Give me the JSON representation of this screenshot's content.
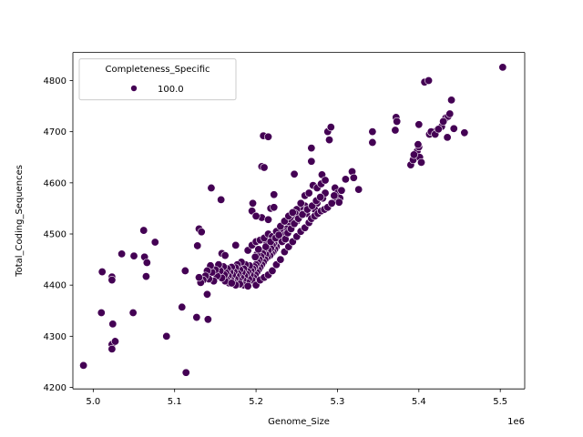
{
  "chart_data": {
    "type": "scatter",
    "xlabel": "Genome_Size",
    "ylabel": "Total_Coding_Sequences",
    "x_scale_label": "1e6",
    "xlim": [
      4.975,
      5.53
    ],
    "ylim": [
      4197,
      4855
    ],
    "x_ticks": [
      5.0,
      5.1,
      5.2,
      5.3,
      5.4,
      5.5
    ],
    "x_tick_labels": [
      "5.0",
      "5.1",
      "5.2",
      "5.3",
      "5.4",
      "5.5"
    ],
    "y_ticks": [
      4200,
      4300,
      4400,
      4500,
      4600,
      4700,
      4800
    ],
    "y_tick_labels": [
      "4200",
      "4300",
      "4400",
      "4500",
      "4600",
      "4700",
      "4800"
    ],
    "grid": false,
    "legend": {
      "title": "Completeness_Specific",
      "entries": [
        "100.0"
      ],
      "placement": "upper-left"
    },
    "marker_color": "#440154",
    "marker_edge_color": "#ffffff",
    "series": [
      {
        "name": "100.0",
        "points": [
          [
            4.988,
            4243
          ],
          [
            5.011,
            4426
          ],
          [
            5.01,
            4346
          ],
          [
            5.023,
            4416
          ],
          [
            5.023,
            4410
          ],
          [
            5.024,
            4324
          ],
          [
            5.023,
            4284
          ],
          [
            5.023,
            4275
          ],
          [
            5.027,
            4290
          ],
          [
            5.035,
            4461
          ],
          [
            5.049,
            4346
          ],
          [
            5.05,
            4457
          ],
          [
            5.062,
            4507
          ],
          [
            5.063,
            4455
          ],
          [
            5.065,
            4417
          ],
          [
            5.066,
            4444
          ],
          [
            5.076,
            4484
          ],
          [
            5.09,
            4300
          ],
          [
            5.109,
            4357
          ],
          [
            5.113,
            4428
          ],
          [
            5.114,
            4229
          ],
          [
            5.127,
            4337
          ],
          [
            5.128,
            4477
          ],
          [
            5.13,
            4510
          ],
          [
            5.133,
            4504
          ],
          [
            5.14,
            4382
          ],
          [
            5.141,
            4333
          ],
          [
            5.145,
            4590
          ],
          [
            5.157,
            4567
          ],
          [
            5.209,
            4692
          ],
          [
            5.215,
            4690
          ],
          [
            5.196,
            4560
          ],
          [
            5.207,
            4632
          ],
          [
            5.21,
            4630
          ],
          [
            5.222,
            4577
          ],
          [
            5.247,
            4617
          ],
          [
            5.268,
            4668
          ],
          [
            5.268,
            4642
          ],
          [
            5.281,
            4616
          ],
          [
            5.288,
            4700
          ],
          [
            5.292,
            4709
          ],
          [
            5.29,
            4684
          ],
          [
            5.31,
            4607
          ],
          [
            5.318,
            4622
          ],
          [
            5.32,
            4610
          ],
          [
            5.326,
            4587
          ],
          [
            5.343,
            4700
          ],
          [
            5.343,
            4679
          ],
          [
            5.372,
            4728
          ],
          [
            5.373,
            4720
          ],
          [
            5.371,
            4703
          ],
          [
            5.4,
            4714
          ],
          [
            5.407,
            4797
          ],
          [
            5.412,
            4800
          ],
          [
            5.413,
            4695
          ],
          [
            5.419,
            4700
          ],
          [
            5.433,
            4727
          ],
          [
            5.436,
            4730
          ],
          [
            5.438,
            4735
          ],
          [
            5.44,
            4762
          ],
          [
            5.443,
            4706
          ],
          [
            5.435,
            4689
          ],
          [
            5.456,
            4698
          ],
          [
            5.503,
            4826
          ],
          [
            5.39,
            4635
          ],
          [
            5.393,
            4645
          ],
          [
            5.396,
            4658
          ],
          [
            5.398,
            4662
          ],
          [
            5.4,
            4670
          ],
          [
            5.401,
            4650
          ],
          [
            5.403,
            4640
          ],
          [
            5.399,
            4675
          ],
          [
            5.394,
            4655
          ],
          [
            5.415,
            4700
          ],
          [
            5.42,
            4695
          ],
          [
            5.428,
            4710
          ],
          [
            5.43,
            4720
          ],
          [
            5.424,
            4705
          ],
          [
            5.297,
            4590
          ],
          [
            5.3,
            4580
          ],
          [
            5.303,
            4570
          ],
          [
            5.305,
            4585
          ],
          [
            5.299,
            4565
          ],
          [
            5.302,
            4562
          ],
          [
            5.282,
            4570
          ],
          [
            5.285,
            4580
          ],
          [
            5.275,
            4560
          ],
          [
            5.272,
            4548
          ],
          [
            5.265,
            4550
          ],
          [
            5.262,
            4540
          ],
          [
            5.26,
            4555
          ],
          [
            5.258,
            4545
          ],
          [
            5.256,
            4550
          ],
          [
            5.254,
            4552
          ],
          [
            5.25,
            4548
          ],
          [
            5.248,
            4540
          ],
          [
            5.245,
            4530
          ],
          [
            5.244,
            4520
          ],
          [
            5.242,
            4528
          ],
          [
            5.24,
            4515
          ],
          [
            5.238,
            4510
          ],
          [
            5.236,
            4505
          ],
          [
            5.234,
            4498
          ],
          [
            5.232,
            4500
          ],
          [
            5.231,
            4490
          ],
          [
            5.23,
            4510
          ],
          [
            5.229,
            4486
          ],
          [
            5.227,
            4495
          ],
          [
            5.226,
            4480
          ],
          [
            5.225,
            4475
          ],
          [
            5.224,
            4488
          ],
          [
            5.223,
            4470
          ],
          [
            5.222,
            4482
          ],
          [
            5.221,
            4465
          ],
          [
            5.22,
            4478
          ],
          [
            5.219,
            4462
          ],
          [
            5.218,
            4472
          ],
          [
            5.217,
            4458
          ],
          [
            5.216,
            4490
          ],
          [
            5.215,
            4468
          ],
          [
            5.214,
            4455
          ],
          [
            5.213,
            4480
          ],
          [
            5.212,
            4460
          ],
          [
            5.211,
            4450
          ],
          [
            5.21,
            4470
          ],
          [
            5.209,
            4445
          ],
          [
            5.208,
            4462
          ],
          [
            5.207,
            4440
          ],
          [
            5.206,
            4456
          ],
          [
            5.205,
            4435
          ],
          [
            5.204,
            4450
          ],
          [
            5.203,
            4430
          ],
          [
            5.202,
            4445
          ],
          [
            5.201,
            4425
          ],
          [
            5.2,
            4440
          ],
          [
            5.199,
            4420
          ],
          [
            5.198,
            4436
          ],
          [
            5.197,
            4415
          ],
          [
            5.196,
            4432
          ],
          [
            5.195,
            4410
          ],
          [
            5.194,
            4428
          ],
          [
            5.193,
            4420
          ],
          [
            5.192,
            4438
          ],
          [
            5.191,
            4412
          ],
          [
            5.19,
            4426
          ],
          [
            5.189,
            4405
          ],
          [
            5.188,
            4422
          ],
          [
            5.187,
            4440
          ],
          [
            5.186,
            4418
          ],
          [
            5.185,
            4432
          ],
          [
            5.184,
            4410
          ],
          [
            5.183,
            4425
          ],
          [
            5.182,
            4445
          ],
          [
            5.181,
            4415
          ],
          [
            5.18,
            4430
          ],
          [
            5.179,
            4408
          ],
          [
            5.178,
            4422
          ],
          [
            5.177,
            4440
          ],
          [
            5.176,
            4418
          ],
          [
            5.175,
            4434
          ],
          [
            5.174,
            4412
          ],
          [
            5.173,
            4426
          ],
          [
            5.172,
            4406
          ],
          [
            5.171,
            4420
          ],
          [
            5.17,
            4435
          ],
          [
            5.169,
            4410
          ],
          [
            5.168,
            4425
          ],
          [
            5.167,
            4404
          ],
          [
            5.166,
            4418
          ],
          [
            5.165,
            4432
          ],
          [
            5.164,
            4410
          ],
          [
            5.163,
            4424
          ],
          [
            5.162,
            4408
          ],
          [
            5.161,
            4420
          ],
          [
            5.16,
            4436
          ],
          [
            5.158,
            4414
          ],
          [
            5.156,
            4428
          ],
          [
            5.154,
            4440
          ],
          [
            5.152,
            4418
          ],
          [
            5.15,
            4430
          ],
          [
            5.148,
            4408
          ],
          [
            5.146,
            4425
          ],
          [
            5.144,
            4438
          ],
          [
            5.142,
            4412
          ],
          [
            5.14,
            4428
          ],
          [
            5.138,
            4418
          ],
          [
            5.135,
            4410
          ],
          [
            5.132,
            4405
          ],
          [
            5.13,
            4415
          ],
          [
            5.158,
            4462
          ],
          [
            5.162,
            4458
          ],
          [
            5.175,
            4478
          ],
          [
            5.19,
            4468
          ],
          [
            5.195,
            4478
          ],
          [
            5.2,
            4485
          ],
          [
            5.205,
            4488
          ],
          [
            5.21,
            4492
          ],
          [
            5.215,
            4500
          ],
          [
            5.22,
            4495
          ],
          [
            5.225,
            4505
          ],
          [
            5.23,
            4515
          ],
          [
            5.235,
            4525
          ],
          [
            5.24,
            4535
          ],
          [
            5.245,
            4542
          ],
          [
            5.25,
            4525
          ],
          [
            5.255,
            4560
          ],
          [
            5.26,
            4575
          ],
          [
            5.265,
            4580
          ],
          [
            5.27,
            4595
          ],
          [
            5.275,
            4590
          ],
          [
            5.28,
            4598
          ],
          [
            5.285,
            4605
          ],
          [
            5.207,
            4532
          ],
          [
            5.215,
            4528
          ],
          [
            5.218,
            4550
          ],
          [
            5.222,
            4552
          ],
          [
            5.195,
            4545
          ],
          [
            5.2,
            4535
          ],
          [
            5.185,
            4400
          ],
          [
            5.19,
            4398
          ],
          [
            5.18,
            4402
          ],
          [
            5.175,
            4400
          ],
          [
            5.17,
            4404
          ],
          [
            5.2,
            4400
          ],
          [
            5.205,
            4410
          ],
          [
            5.21,
            4415
          ],
          [
            5.215,
            4420
          ],
          [
            5.22,
            4428
          ],
          [
            5.225,
            4440
          ],
          [
            5.23,
            4450
          ],
          [
            5.235,
            4465
          ],
          [
            5.24,
            4475
          ],
          [
            5.245,
            4485
          ],
          [
            5.25,
            4495
          ],
          [
            5.255,
            4505
          ],
          [
            5.26,
            4512
          ],
          [
            5.265,
            4522
          ],
          [
            5.268,
            4530
          ],
          [
            5.272,
            4535
          ],
          [
            5.276,
            4540
          ],
          [
            5.28,
            4545
          ],
          [
            5.284,
            4548
          ],
          [
            5.288,
            4552
          ],
          [
            5.212,
            4475
          ],
          [
            5.218,
            4485
          ],
          [
            5.224,
            4492
          ],
          [
            5.228,
            4498
          ],
          [
            5.232,
            4485
          ],
          [
            5.236,
            4490
          ],
          [
            5.239,
            4502
          ],
          [
            5.243,
            4510
          ],
          [
            5.247,
            4520
          ],
          [
            5.252,
            4530
          ],
          [
            5.257,
            4538
          ],
          [
            5.263,
            4548
          ],
          [
            5.269,
            4555
          ],
          [
            5.274,
            4565
          ],
          [
            5.279,
            4572
          ],
          [
            5.293,
            4560
          ],
          [
            5.296,
            4575
          ],
          [
            5.201,
            4460
          ],
          [
            5.203,
            4470
          ],
          [
            5.199,
            4455
          ]
        ]
      }
    ]
  }
}
